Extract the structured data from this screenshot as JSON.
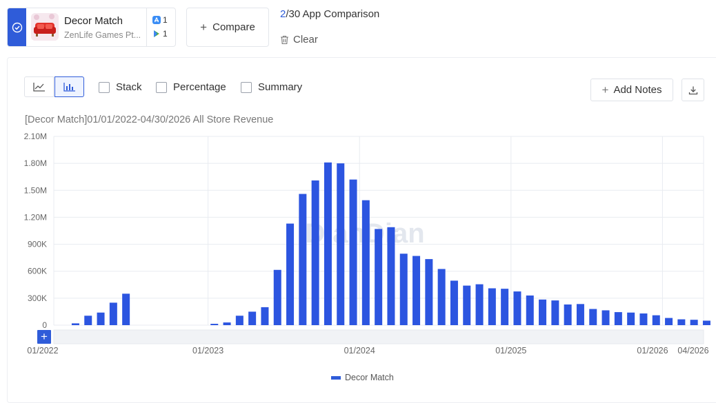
{
  "app": {
    "name": "Decor Match",
    "developer": "ZenLife Games Pt...",
    "ios_count": "1",
    "android_count": "1",
    "icon": "decor-match-app-icon"
  },
  "header": {
    "compare_label": "Compare",
    "count_current": "2",
    "count_rest": "/30 App Comparison",
    "clear_label": "Clear"
  },
  "toolbar": {
    "options": [
      {
        "label": "Stack",
        "checked": false
      },
      {
        "label": "Percentage",
        "checked": false
      },
      {
        "label": "Summary",
        "checked": false
      }
    ],
    "add_notes_label": "Add Notes",
    "active_chart_type": "bar"
  },
  "colors": {
    "accent": "#2f5cd9",
    "bar": "#2c55e0",
    "grid": "#e8ebf0"
  },
  "watermark": "DianDian",
  "slider_plus": "+",
  "chart_data": {
    "type": "bar",
    "title": "[Decor Match]01/01/2022-04/30/2026 All Store Revenue",
    "ylim": [
      0,
      2100000
    ],
    "ytick_values": [
      0,
      300000,
      600000,
      900000,
      1200000,
      1500000,
      1800000,
      2100000
    ],
    "ytick_labels": [
      "0",
      "300K",
      "600K",
      "900K",
      "1.20M",
      "1.50M",
      "1.80M",
      "2.10M"
    ],
    "xtick_labels": [
      {
        "label": "01/2022",
        "month": 0
      },
      {
        "label": "01/2023",
        "month": 12
      },
      {
        "label": "01/2024",
        "month": 24
      },
      {
        "label": "01/2025",
        "month": 36
      },
      {
        "label": "01/2026",
        "month": 48
      },
      {
        "label": "04/2026",
        "month": 51
      }
    ],
    "grid": true,
    "legend_position": "bottom-center",
    "series": [
      {
        "name": "Decor Match",
        "categories": [
          "01/2022",
          "02/2022",
          "03/2022",
          "04/2022",
          "05/2022",
          "06/2022",
          "07/2022",
          "08/2022",
          "09/2022",
          "10/2022",
          "11/2022",
          "12/2022",
          "01/2023",
          "02/2023",
          "03/2023",
          "04/2023",
          "05/2023",
          "06/2023",
          "07/2023",
          "08/2023",
          "09/2023",
          "10/2023",
          "11/2023",
          "12/2023",
          "01/2024",
          "02/2024",
          "03/2024",
          "04/2024",
          "05/2024",
          "06/2024",
          "07/2024",
          "08/2024",
          "09/2024",
          "10/2024",
          "11/2024",
          "12/2024",
          "01/2025",
          "02/2025",
          "03/2025",
          "04/2025",
          "05/2025",
          "06/2025",
          "07/2025",
          "08/2025",
          "09/2025",
          "10/2025",
          "11/2025",
          "12/2025",
          "01/2026",
          "02/2026",
          "03/2026",
          "04/2026"
        ],
        "values": [
          0,
          20000,
          105000,
          140000,
          250000,
          350000,
          0,
          0,
          0,
          0,
          0,
          0,
          15000,
          30000,
          105000,
          150000,
          200000,
          615000,
          1130000,
          1460000,
          1610000,
          1810000,
          1800000,
          1620000,
          1390000,
          1070000,
          1090000,
          795000,
          770000,
          735000,
          625000,
          495000,
          440000,
          455000,
          410000,
          405000,
          375000,
          330000,
          285000,
          275000,
          230000,
          235000,
          180000,
          165000,
          145000,
          140000,
          130000,
          110000,
          80000,
          65000,
          60000,
          50000
        ]
      }
    ]
  }
}
